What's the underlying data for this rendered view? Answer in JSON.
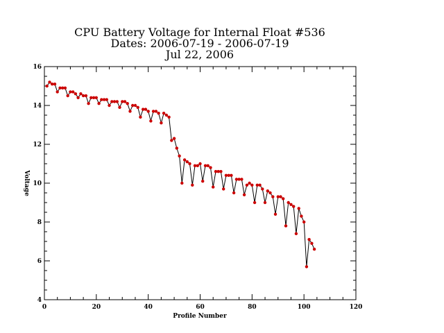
{
  "chart_data": {
    "type": "line",
    "title_lines": [
      "CPU Battery Voltage for Internal Float #536",
      "Dates:  2006-07-19 -  2006-07-19",
      "Jul 22, 2006"
    ],
    "xlabel": "Profile Number",
    "ylabel": "Voltage",
    "xlim": [
      0,
      120
    ],
    "ylim": [
      4,
      16
    ],
    "x_ticks": [
      "0",
      "20",
      "40",
      "60",
      "80",
      "100",
      "120"
    ],
    "y_ticks": [
      "4",
      "6",
      "8",
      "10",
      "12",
      "14",
      "16"
    ],
    "grid": false,
    "legend": "none",
    "line_color": "#000000",
    "marker_color": "#cc0000",
    "series": [
      {
        "x": [
          1,
          2,
          3,
          4,
          5,
          6,
          7,
          8,
          9,
          10,
          11,
          12,
          13,
          14,
          15,
          16,
          17,
          18,
          19,
          20,
          21,
          22,
          23,
          24,
          25,
          26,
          27,
          28,
          29,
          30,
          31,
          32,
          33,
          34,
          35,
          36,
          37,
          38,
          39,
          40,
          41,
          42,
          43,
          44,
          45,
          46,
          47,
          48,
          49,
          50,
          51,
          52,
          53,
          54,
          55,
          56,
          57,
          58,
          59,
          60,
          61,
          62,
          63,
          64,
          65,
          66,
          67,
          68,
          69,
          70,
          71,
          72,
          73,
          74,
          75,
          76,
          77,
          78,
          79,
          80,
          81,
          82,
          83,
          84,
          85,
          86,
          87,
          88,
          89,
          90,
          91,
          92,
          93,
          94,
          95,
          96,
          97,
          98,
          99,
          100,
          101,
          102,
          103,
          104
        ],
        "y": [
          15.0,
          15.2,
          15.1,
          15.1,
          14.7,
          14.9,
          14.9,
          14.9,
          14.5,
          14.7,
          14.7,
          14.6,
          14.4,
          14.6,
          14.5,
          14.5,
          14.1,
          14.4,
          14.4,
          14.4,
          14.1,
          14.3,
          14.3,
          14.3,
          14.0,
          14.2,
          14.2,
          14.2,
          13.9,
          14.2,
          14.2,
          14.1,
          13.7,
          14.0,
          14.0,
          13.9,
          13.4,
          13.8,
          13.8,
          13.7,
          13.2,
          13.7,
          13.7,
          13.6,
          13.1,
          13.6,
          13.5,
          13.4,
          12.2,
          12.3,
          11.8,
          11.4,
          10.0,
          11.2,
          11.1,
          11.0,
          9.9,
          10.9,
          10.9,
          11.0,
          10.1,
          10.9,
          10.9,
          10.8,
          9.8,
          10.6,
          10.6,
          10.6,
          9.7,
          10.4,
          10.4,
          10.4,
          9.5,
          10.2,
          10.2,
          10.2,
          9.4,
          9.9,
          10.0,
          9.9,
          9.0,
          9.9,
          9.9,
          9.7,
          9.0,
          9.6,
          9.5,
          9.3,
          8.4,
          9.3,
          9.3,
          9.2,
          7.8,
          9.0,
          8.9,
          8.8,
          7.4,
          8.7,
          8.3,
          8.0,
          5.7,
          7.1,
          6.9,
          6.6
        ]
      }
    ]
  }
}
